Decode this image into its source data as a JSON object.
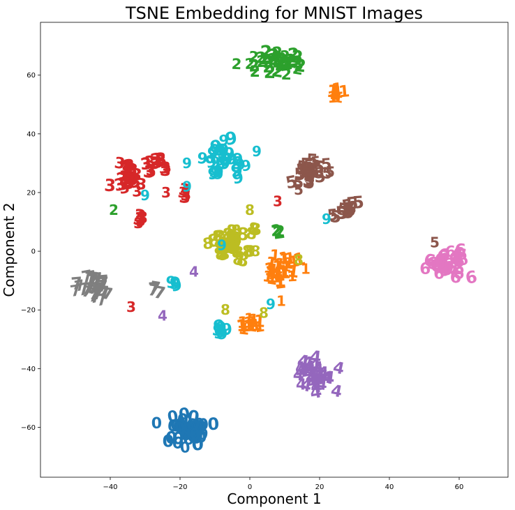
{
  "chart_data": {
    "type": "scatter",
    "title": "TSNE Embedding for MNIST Images",
    "xlabel": "Component 1",
    "ylabel": "Component 2",
    "xlim": [
      -60,
      74
    ],
    "ylim": [
      -77,
      78
    ],
    "xticks": [
      -40,
      -20,
      0,
      20,
      40,
      60
    ],
    "yticks": [
      -60,
      -40,
      -20,
      0,
      20,
      40,
      60
    ],
    "grid": false,
    "legend": "none",
    "marker": "digit glyph",
    "colors": {
      "0": "#1f77b4",
      "1": "#ff7f0e",
      "2": "#2ca02c",
      "3": "#d62728",
      "4": "#9467bd",
      "5": "#8c564b",
      "6": "#e377c2",
      "7": "#7f7f7f",
      "8": "#bcbd22",
      "9": "#17becf"
    },
    "clusters": [
      {
        "digit": "0",
        "center": [
          -18,
          -61
        ],
        "spread": [
          6,
          5
        ],
        "count": 45
      },
      {
        "digit": "1",
        "center": [
          9,
          -7
        ],
        "spread": [
          4,
          5
        ],
        "count": 26
      },
      {
        "digit": "1",
        "center": [
          0,
          -24
        ],
        "spread": [
          3,
          2
        ],
        "count": 14
      },
      {
        "digit": "1",
        "center": [
          25,
          54
        ],
        "spread": [
          1.5,
          1.5
        ],
        "count": 8
      },
      {
        "digit": "2",
        "center": [
          9,
          64
        ],
        "spread": [
          8,
          3.5
        ],
        "count": 38
      },
      {
        "digit": "2",
        "center": [
          8,
          7
        ],
        "spread": [
          0.8,
          1
        ],
        "count": 4
      },
      {
        "digit": "3",
        "center": [
          -35,
          25
        ],
        "spread": [
          3.5,
          5
        ],
        "count": 26
      },
      {
        "digit": "3",
        "center": [
          -27,
          29
        ],
        "spread": [
          3.5,
          3
        ],
        "count": 14
      },
      {
        "digit": "3",
        "center": [
          -31,
          11
        ],
        "spread": [
          1,
          1.5
        ],
        "count": 5
      },
      {
        "digit": "3",
        "center": [
          -19,
          20
        ],
        "spread": [
          1,
          1.5
        ],
        "count": 4
      },
      {
        "digit": "4",
        "center": [
          19,
          -42
        ],
        "spread": [
          5,
          5
        ],
        "count": 32
      },
      {
        "digit": "5",
        "center": [
          17,
          27
        ],
        "spread": [
          5,
          5
        ],
        "count": 26
      },
      {
        "digit": "5",
        "center": [
          27,
          14
        ],
        "spread": [
          3,
          3
        ],
        "count": 14
      },
      {
        "digit": "6",
        "center": [
          56,
          -4
        ],
        "spread": [
          5,
          5
        ],
        "count": 36
      },
      {
        "digit": "7",
        "center": [
          -45,
          -12
        ],
        "spread": [
          6,
          3.5
        ],
        "count": 32
      },
      {
        "digit": "7",
        "center": [
          -27,
          -13
        ],
        "spread": [
          1.5,
          1.5
        ],
        "count": 4
      },
      {
        "digit": "8",
        "center": [
          -6,
          3
        ],
        "spread": [
          6,
          5
        ],
        "count": 40
      },
      {
        "digit": "9",
        "center": [
          -7,
          32
        ],
        "spread": [
          5,
          5
        ],
        "count": 30
      },
      {
        "digit": "9",
        "center": [
          -8,
          -27
        ],
        "spread": [
          1.5,
          1.2
        ],
        "count": 7
      },
      {
        "digit": "9",
        "center": [
          -22,
          -11
        ],
        "spread": [
          0.8,
          0.8
        ],
        "count": 3
      }
    ],
    "annotations": [
      {
        "digit": "9",
        "x": -18,
        "y": 30
      },
      {
        "digit": "9",
        "x": -30,
        "y": 19
      },
      {
        "digit": "9",
        "x": -18,
        "y": 22
      },
      {
        "digit": "9",
        "x": 2,
        "y": 34
      },
      {
        "digit": "9",
        "x": 22,
        "y": 11
      },
      {
        "digit": "9",
        "x": -8,
        "y": 2
      },
      {
        "digit": "9",
        "x": 6,
        "y": -18
      },
      {
        "digit": "3",
        "x": -24,
        "y": 20
      },
      {
        "digit": "3",
        "x": 8,
        "y": 17
      },
      {
        "digit": "3",
        "x": -34,
        "y": -19
      },
      {
        "digit": "2",
        "x": -39,
        "y": 14
      },
      {
        "digit": "4",
        "x": -16,
        "y": -7
      },
      {
        "digit": "4",
        "x": -25,
        "y": -22
      },
      {
        "digit": "5",
        "x": 53,
        "y": 3
      },
      {
        "digit": "5",
        "x": 14,
        "y": 21
      },
      {
        "digit": "8",
        "x": -7,
        "y": -20
      },
      {
        "digit": "8",
        "x": 0,
        "y": 14
      },
      {
        "digit": "8",
        "x": 14,
        "y": -3
      },
      {
        "digit": "8",
        "x": 4,
        "y": -21
      },
      {
        "digit": "1",
        "x": 16,
        "y": -6
      },
      {
        "digit": "1",
        "x": 9,
        "y": -17
      }
    ]
  }
}
